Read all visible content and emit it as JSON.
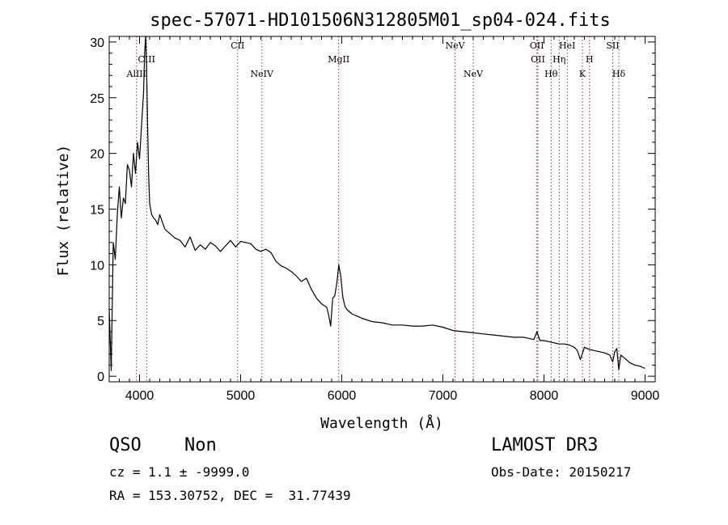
{
  "chart_data": {
    "type": "line",
    "title": "spec-57071-HD101506N312805M01_sp04-024.fits",
    "xlabel": "Wavelength (Å)",
    "ylabel": "Flux (relative)",
    "xlim": [
      3700,
      9100
    ],
    "ylim": [
      -0.5,
      30.5
    ],
    "xticks": [
      4000,
      5000,
      6000,
      7000,
      8000,
      9000
    ],
    "yticks": [
      0,
      5,
      10,
      15,
      20,
      25,
      30
    ],
    "grid": false,
    "lines": [
      {
        "label": "AlIII",
        "wavelength": 3970,
        "row": 2
      },
      {
        "label": "CIII",
        "wavelength": 4070,
        "row": 1
      },
      {
        "label": "CII",
        "wavelength": 4970,
        "row": 0
      },
      {
        "label": "NeIV",
        "wavelength": 5210,
        "row": 2
      },
      {
        "label": "MgII",
        "wavelength": 5970,
        "row": 1
      },
      {
        "label": "NeV",
        "wavelength": 7120,
        "row": 0
      },
      {
        "label": "NeV",
        "wavelength": 7300,
        "row": 2
      },
      {
        "label": "OII",
        "wavelength": 7930,
        "row": 0
      },
      {
        "label": "OII",
        "wavelength": 7940,
        "row": 1
      },
      {
        "label": "Hθ",
        "wavelength": 8070,
        "row": 2
      },
      {
        "label": "Hη",
        "wavelength": 8150,
        "row": 1
      },
      {
        "label": "HeI",
        "wavelength": 8230,
        "row": 0
      },
      {
        "label": "K",
        "wavelength": 8380,
        "row": 2
      },
      {
        "label": "H",
        "wavelength": 8450,
        "row": 1
      },
      {
        "label": "SII",
        "wavelength": 8680,
        "row": 0
      },
      {
        "label": "Hδ",
        "wavelength": 8740,
        "row": 2
      }
    ],
    "series": [
      {
        "x": [
          3700,
          3720,
          3740,
          3760,
          3780,
          3800,
          3820,
          3840,
          3860,
          3880,
          3900,
          3920,
          3940,
          3960,
          3980,
          4000,
          4020,
          4040,
          4050,
          4060,
          4070,
          4080,
          4090,
          4100,
          4120,
          4140,
          4160,
          4180,
          4200,
          4250,
          4300,
          4350,
          4400,
          4450,
          4500,
          4550,
          4600,
          4650,
          4700,
          4750,
          4800,
          4850,
          4900,
          4950,
          5000,
          5050,
          5100,
          5150,
          5200,
          5250,
          5300,
          5350,
          5400,
          5450,
          5500,
          5550,
          5600,
          5650,
          5700,
          5750,
          5800,
          5850,
          5870,
          5890,
          5910,
          5930,
          5950,
          5970,
          5990,
          6010,
          6030,
          6050,
          6100,
          6150,
          6200,
          6300,
          6400,
          6500,
          6600,
          6700,
          6800,
          6900,
          7000,
          7100,
          7200,
          7300,
          7400,
          7500,
          7600,
          7700,
          7800,
          7850,
          7900,
          7930,
          7960,
          8000,
          8050,
          8100,
          8150,
          8200,
          8250,
          8300,
          8330,
          8360,
          8400,
          8450,
          8500,
          8550,
          8600,
          8650,
          8680,
          8700,
          8720,
          8740,
          8760,
          8800,
          8850,
          8900,
          8950,
          9000
        ],
        "y": [
          6.0,
          0.5,
          12.0,
          10.5,
          14.5,
          17.0,
          14.2,
          16.0,
          15.5,
          19.0,
          18.5,
          17.0,
          20.0,
          18.2,
          21.0,
          19.5,
          22.5,
          25.5,
          29.0,
          30.5,
          27.5,
          22.5,
          18.0,
          15.5,
          14.5,
          14.2,
          14.0,
          13.6,
          14.5,
          13.2,
          12.8,
          12.4,
          12.2,
          11.6,
          12.5,
          11.3,
          11.8,
          11.4,
          12.0,
          11.7,
          11.2,
          11.7,
          12.2,
          11.6,
          12.1,
          12.0,
          11.9,
          11.4,
          11.2,
          11.4,
          11.1,
          10.3,
          9.9,
          9.7,
          9.4,
          9.0,
          8.5,
          8.8,
          7.8,
          7.0,
          6.5,
          6.2,
          5.5,
          4.5,
          7.0,
          7.2,
          8.3,
          10.0,
          9.0,
          7.1,
          6.3,
          6.0,
          5.6,
          5.4,
          5.2,
          4.9,
          4.8,
          4.6,
          4.6,
          4.5,
          4.5,
          4.6,
          4.4,
          4.1,
          4.0,
          3.9,
          3.8,
          3.7,
          3.6,
          3.5,
          3.5,
          3.4,
          3.3,
          4.0,
          3.2,
          3.2,
          3.1,
          3.0,
          2.9,
          2.9,
          2.8,
          2.6,
          2.3,
          1.5,
          2.6,
          2.4,
          2.3,
          2.2,
          2.1,
          1.9,
          1.3,
          2.2,
          2.5,
          0.6,
          1.9,
          1.6,
          1.2,
          1.0,
          0.9,
          0.7
        ]
      }
    ]
  },
  "footer": {
    "class": "QSO",
    "subclass": "Non",
    "survey": "LAMOST DR3",
    "cz": "cz = 1.1 ± -9999.0",
    "obs_date": "Obs-Date: 20150217",
    "coords": "RA = 153.30752, DEC =  31.77439"
  }
}
